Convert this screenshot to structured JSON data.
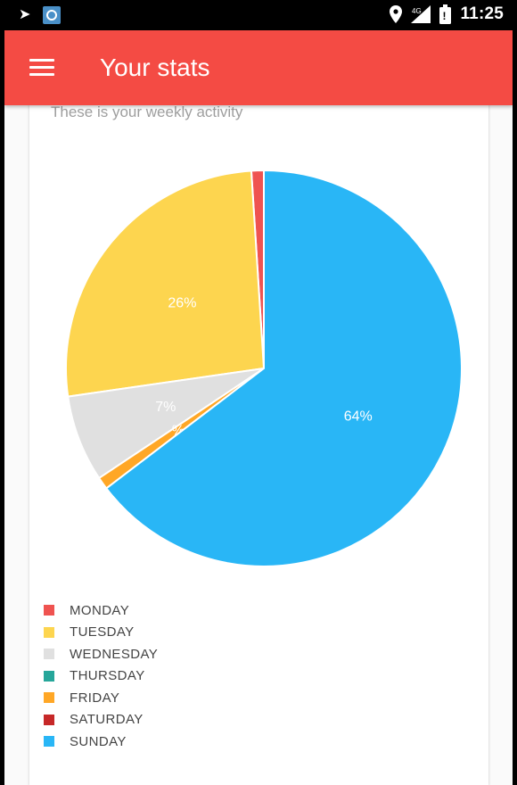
{
  "status_bar": {
    "time": "11:25",
    "icons": [
      "back-arrow-icon",
      "app-notification-icon",
      "location-icon",
      "signal-icon",
      "battery-icon"
    ]
  },
  "app_bar": {
    "title": "Your stats",
    "menu_icon": "hamburger-menu-icon",
    "color": "#f44b44"
  },
  "card": {
    "subtitle": "These is your weekly activity"
  },
  "chart_data": {
    "type": "pie",
    "title": "",
    "categories": [
      "MONDAY",
      "TUESDAY",
      "WEDNESDAY",
      "THURSDAY",
      "FRIDAY",
      "SATURDAY",
      "SUNDAY"
    ],
    "values": [
      1,
      26,
      7,
      0,
      1,
      0,
      64
    ],
    "labels": [
      "",
      "26%",
      "7%",
      "",
      "%",
      "",
      "64%"
    ],
    "colors": [
      "#ef5350",
      "#fdd54f",
      "#e0e0e0",
      "#26a69a",
      "#ffa726",
      "#c62828",
      "#29b6f6"
    ],
    "start_angle_deg": 0,
    "direction": "counterclockwise",
    "legend_position": "bottom-left"
  }
}
